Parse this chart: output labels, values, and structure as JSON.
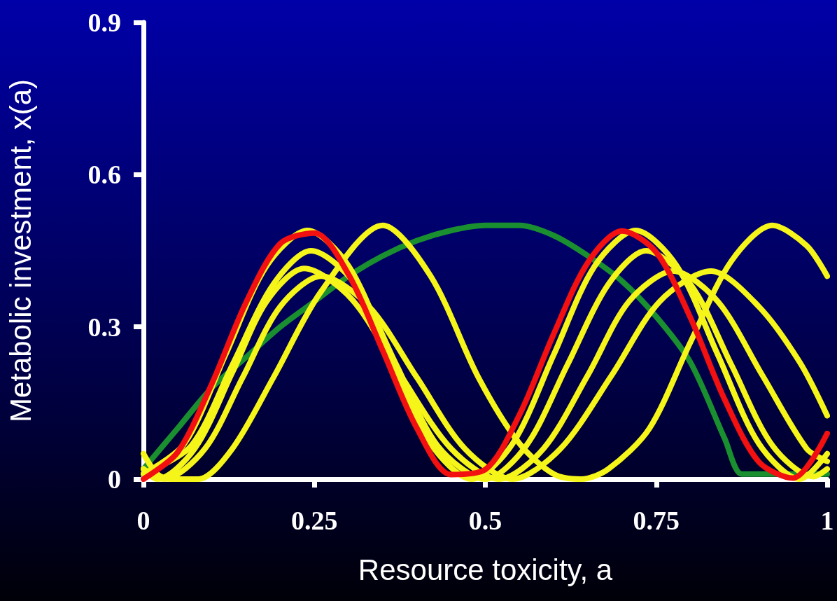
{
  "chart_data": {
    "type": "line",
    "xlabel": "Resource toxicity, a",
    "ylabel": "Metabolic investment, x(a)",
    "xlim": [
      0,
      1
    ],
    "xticks": [
      0,
      0.25,
      0.5,
      0.75,
      1
    ],
    "ylim": [
      0,
      0.9
    ],
    "yticks": [
      0,
      0.3,
      0.6,
      0.9
    ],
    "grid": false,
    "marker": "none",
    "line_style": "solid",
    "series": [
      {
        "color": "#1a8f30",
        "x": [
          0,
          0.05,
          0.1,
          0.15,
          0.2,
          0.25,
          0.3,
          0.35,
          0.4,
          0.45,
          0.5,
          0.55,
          0.6,
          0.65,
          0.7,
          0.75,
          0.8,
          0.85,
          0.875,
          0.9,
          1
        ],
        "values": [
          0.02,
          0.1,
          0.18,
          0.24,
          0.3,
          0.35,
          0.4,
          0.44,
          0.47,
          0.49,
          0.5,
          0.5,
          0.48,
          0.44,
          0.39,
          0.32,
          0.23,
          0.08,
          0.01,
          0.01,
          0.01
        ]
      },
      {
        "color": "#f5f51a",
        "x": [
          0,
          0.02,
          0.04,
          0.08,
          0.13,
          0.19,
          0.26,
          0.35,
          0.42,
          0.49,
          0.55,
          0.6,
          0.64,
          0.68,
          0.74,
          0.8,
          0.86,
          0.92,
          0.97,
          1
        ],
        "values": [
          0.05,
          0.01,
          0,
          0,
          0.06,
          0.2,
          0.37,
          0.5,
          0.4,
          0.2,
          0.07,
          0.01,
          0,
          0.02,
          0.1,
          0.27,
          0.43,
          0.5,
          0.46,
          0.4
        ]
      },
      {
        "color": "#f5f51a",
        "x": [
          0,
          0.03,
          0.09,
          0.145,
          0.2,
          0.26,
          0.33,
          0.4,
          0.47,
          0.54,
          0.61,
          0.685,
          0.755,
          0.83,
          0.9,
          0.96,
          1
        ],
        "values": [
          0.02,
          0,
          0.06,
          0.2,
          0.34,
          0.4,
          0.34,
          0.2,
          0.06,
          0,
          0.06,
          0.205,
          0.35,
          0.41,
          0.34,
          0.23,
          0.125
        ]
      },
      {
        "color": "#f5f51a",
        "x": [
          0,
          0.02,
          0.075,
          0.13,
          0.18,
          0.235,
          0.305,
          0.375,
          0.45,
          0.52,
          0.585,
          0.65,
          0.71,
          0.775,
          0.84,
          0.905,
          0.97,
          1
        ],
        "values": [
          0.02,
          0,
          0.06,
          0.21,
          0.35,
          0.415,
          0.354,
          0.207,
          0.06,
          0,
          0.06,
          0.205,
          0.35,
          0.41,
          0.35,
          0.205,
          0.06,
          0.035
        ]
      },
      {
        "color": "#f5f51a",
        "x": [
          0,
          0.07,
          0.13,
          0.19,
          0.245,
          0.31,
          0.37,
          0.43,
          0.5,
          0.56,
          0.62,
          0.68,
          0.735,
          0.8,
          0.86,
          0.92,
          0.98,
          1
        ],
        "values": [
          0.01,
          0.066,
          0.225,
          0.384,
          0.45,
          0.384,
          0.225,
          0.066,
          0,
          0.066,
          0.225,
          0.384,
          0.45,
          0.384,
          0.225,
          0.066,
          0.005,
          0.02
        ]
      },
      {
        "color": "#f5f51a",
        "x": [
          0,
          0.06,
          0.12,
          0.18,
          0.24,
          0.3,
          0.36,
          0.42,
          0.48,
          0.54,
          0.6,
          0.66,
          0.72,
          0.78,
          0.84,
          0.9,
          0.96,
          1
        ],
        "values": [
          0.01,
          0.07,
          0.245,
          0.42,
          0.49,
          0.42,
          0.245,
          0.07,
          0,
          0.07,
          0.245,
          0.42,
          0.49,
          0.42,
          0.245,
          0.07,
          0,
          0.05
        ]
      },
      {
        "color": "#f21010",
        "x": [
          0,
          0.05,
          0.1,
          0.15,
          0.2,
          0.25,
          0.3,
          0.35,
          0.4,
          0.45,
          0.5,
          0.55,
          0.6,
          0.65,
          0.7,
          0.75,
          0.8,
          0.85,
          0.9,
          0.95,
          1
        ],
        "values": [
          0,
          0.053,
          0.188,
          0.348,
          0.464,
          0.485,
          0.403,
          0.253,
          0.1,
          0.009,
          0.019,
          0.127,
          0.286,
          0.427,
          0.489,
          0.447,
          0.318,
          0.157,
          0.034,
          0.002,
          0.09
        ]
      }
    ]
  }
}
